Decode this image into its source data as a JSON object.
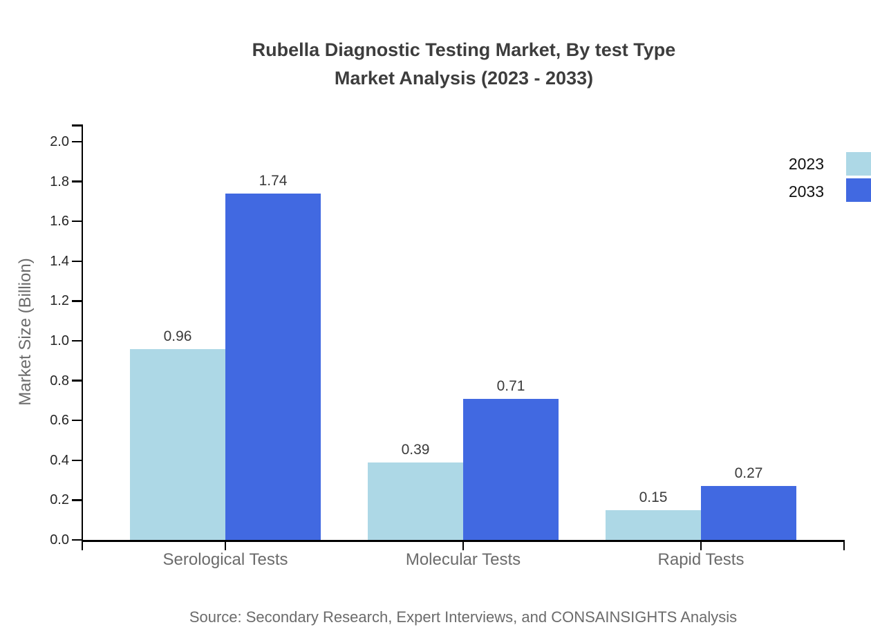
{
  "title": {
    "line1": "Rubella Diagnostic Testing Market, By test Type",
    "line2": "Market Analysis (2023 - 2033)"
  },
  "source": "Source: Secondary Research, Expert Interviews, and CONSAINSIGHTS Analysis",
  "chart_data": {
    "type": "bar",
    "categories": [
      "Serological Tests",
      "Molecular Tests",
      "Rapid Tests"
    ],
    "series": [
      {
        "name": "2023",
        "values": [
          0.96,
          0.39,
          0.15
        ],
        "labels": [
          "0.96",
          "0.39",
          "0.15"
        ],
        "color": "#add8e6"
      },
      {
        "name": "2033",
        "values": [
          1.74,
          0.71,
          0.27
        ],
        "labels": [
          "1.74",
          "0.71",
          "0.27"
        ],
        "color": "#4169e1"
      }
    ],
    "title": "Rubella Diagnostic Testing Market, By test Type Market Analysis (2023 - 2033)",
    "xlabel": "",
    "ylabel": "Market Size (Billion)",
    "ylim": [
      0.0,
      2.0
    ],
    "yticks": [
      "0.0",
      "0.2",
      "0.4",
      "0.6",
      "0.8",
      "1.0",
      "1.2",
      "1.4",
      "1.6",
      "1.8",
      "2.0"
    ],
    "grid": false,
    "legend_position": "upper-right-outside"
  },
  "colors": {
    "background": "#ffffff",
    "series_2023": "#add8e6",
    "series_2033": "#4169e1",
    "axis": "#000000",
    "title_text": "#3d3d3d",
    "tick_label_text": "#262626",
    "category_label_text": "#6b6b6b",
    "value_label_text": "#3a3a3a",
    "legend_text": "#111111",
    "source_text": "#6b6b6b"
  }
}
